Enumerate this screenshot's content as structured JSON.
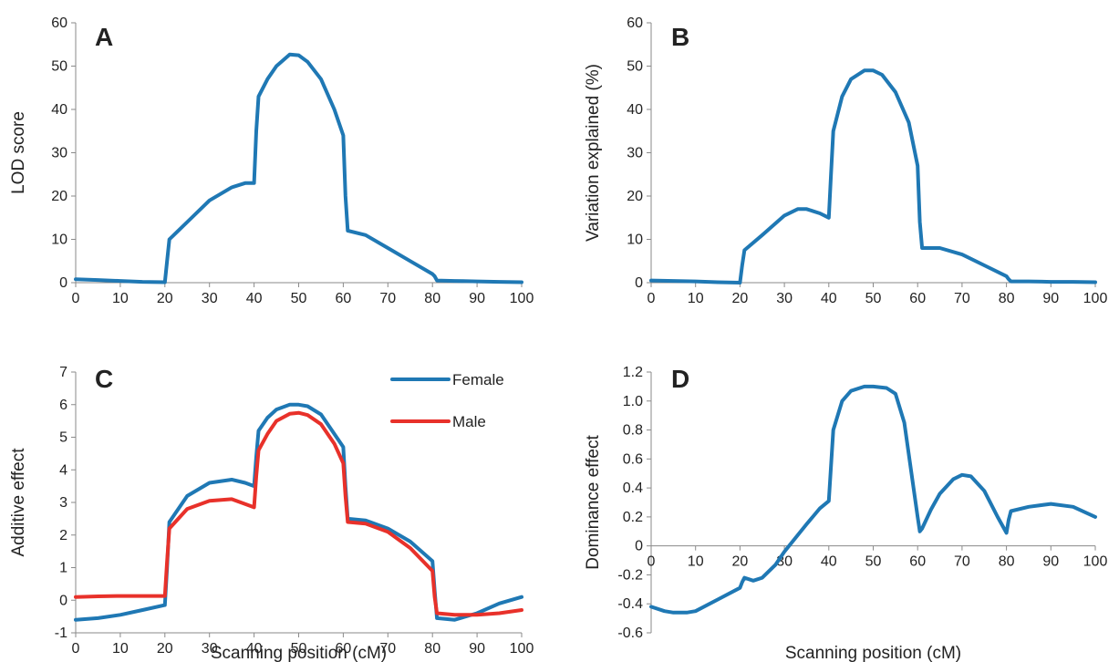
{
  "chart_data": [
    {
      "type": "line",
      "panel_label": "A",
      "xlabel": "",
      "ylabel": "LOD score",
      "xlim": [
        0,
        100
      ],
      "ylim": [
        0,
        60
      ],
      "xticks": [
        0,
        10,
        20,
        30,
        40,
        50,
        60,
        70,
        80,
        90,
        100
      ],
      "yticks": [
        0,
        10,
        20,
        30,
        40,
        50,
        60
      ],
      "grid": false,
      "series": [
        {
          "color": "#1f78b4",
          "x": [
            0,
            5,
            10,
            15,
            20,
            20.5,
            21,
            25,
            30,
            35,
            38,
            40,
            40.5,
            41,
            43,
            45,
            48,
            50,
            52,
            55,
            58,
            60,
            60.5,
            61,
            65,
            70,
            75,
            80,
            80.5,
            81,
            85,
            90,
            95,
            100
          ],
          "y": [
            0.8,
            0.6,
            0.4,
            0.2,
            0.1,
            5,
            10,
            14,
            19,
            22,
            23,
            23,
            35,
            43,
            47,
            50,
            52.7,
            52.5,
            51,
            47,
            40,
            34,
            20,
            12,
            11,
            8,
            5,
            2,
            1.5,
            0.5,
            0.4,
            0.3,
            0.2,
            0.1
          ]
        }
      ]
    },
    {
      "type": "line",
      "panel_label": "B",
      "xlabel": "",
      "ylabel": "Variation explained (%)",
      "xlim": [
        0,
        100
      ],
      "ylim": [
        0,
        60
      ],
      "xticks": [
        0,
        10,
        20,
        30,
        40,
        50,
        60,
        70,
        80,
        90,
        100
      ],
      "yticks": [
        0,
        10,
        20,
        30,
        40,
        50,
        60
      ],
      "grid": false,
      "series": [
        {
          "color": "#1f78b4",
          "x": [
            0,
            5,
            10,
            15,
            20,
            20.5,
            21,
            25,
            30,
            33,
            35,
            38,
            40,
            40.5,
            41,
            43,
            45,
            48,
            50,
            52,
            55,
            58,
            60,
            60.5,
            61,
            65,
            70,
            75,
            80,
            80.5,
            81,
            85,
            90,
            95,
            100
          ],
          "y": [
            0.5,
            0.4,
            0.3,
            0.1,
            0,
            4,
            7.5,
            11,
            15.5,
            17,
            17,
            16,
            15,
            25,
            35,
            43,
            47,
            49,
            49,
            48,
            44,
            37,
            27,
            14,
            8,
            8,
            6.5,
            4,
            1.5,
            0.8,
            0.3,
            0.3,
            0.2,
            0.2,
            0.1
          ]
        }
      ]
    },
    {
      "type": "line",
      "panel_label": "C",
      "xlabel": "Scanning position (cM)",
      "ylabel": "Additive effect",
      "xlim": [
        0,
        100
      ],
      "ylim": [
        -1,
        7
      ],
      "xticks": [
        0,
        10,
        20,
        30,
        40,
        50,
        60,
        70,
        80,
        90,
        100
      ],
      "yticks": [
        -1,
        0,
        1,
        2,
        3,
        4,
        5,
        6,
        7
      ],
      "grid": false,
      "legend": "top-right",
      "series": [
        {
          "name": "Female",
          "color": "#1f78b4",
          "x": [
            0,
            5,
            10,
            15,
            20,
            20.5,
            21,
            25,
            30,
            35,
            38,
            40,
            40.5,
            41,
            43,
            45,
            48,
            50,
            52,
            55,
            58,
            60,
            60.5,
            61,
            65,
            70,
            75,
            80,
            80.5,
            81,
            85,
            90,
            95,
            100
          ],
          "y": [
            -0.6,
            -0.55,
            -0.45,
            -0.3,
            -0.15,
            1,
            2.4,
            3.2,
            3.6,
            3.7,
            3.6,
            3.5,
            4.4,
            5.2,
            5.6,
            5.85,
            6.0,
            6.0,
            5.95,
            5.7,
            5.1,
            4.7,
            3.5,
            2.5,
            2.45,
            2.2,
            1.8,
            1.2,
            0.3,
            -0.55,
            -0.6,
            -0.4,
            -0.1,
            0.1
          ]
        },
        {
          "name": "Male",
          "color": "#e8312a",
          "x": [
            0,
            5,
            10,
            15,
            20,
            20.5,
            21,
            25,
            30,
            35,
            38,
            40,
            40.5,
            41,
            43,
            45,
            48,
            50,
            52,
            55,
            58,
            60,
            60.5,
            61,
            65,
            70,
            75,
            80,
            80.5,
            81,
            85,
            90,
            95,
            100
          ],
          "y": [
            0.1,
            0.12,
            0.13,
            0.13,
            0.13,
            1.2,
            2.2,
            2.8,
            3.05,
            3.1,
            2.95,
            2.85,
            3.8,
            4.6,
            5.1,
            5.5,
            5.72,
            5.75,
            5.68,
            5.4,
            4.8,
            4.2,
            3.2,
            2.4,
            2.35,
            2.1,
            1.6,
            0.9,
            0.1,
            -0.4,
            -0.45,
            -0.45,
            -0.4,
            -0.3
          ]
        }
      ]
    },
    {
      "type": "line",
      "panel_label": "D",
      "xlabel": "Scanning position (cM)",
      "ylabel": "Dominance effect",
      "xlim": [
        0,
        100
      ],
      "ylim": [
        -0.6,
        1.2
      ],
      "xticks": [
        0,
        10,
        20,
        30,
        40,
        50,
        60,
        70,
        80,
        90,
        100
      ],
      "yticks": [
        -0.6,
        -0.4,
        -0.2,
        0,
        0.2,
        0.4,
        0.6,
        0.8,
        1.0,
        1.2
      ],
      "ytick_labels": [
        "-0.6",
        "-0.4",
        "-0.2",
        "0",
        "0.2",
        "0.4",
        "0.6",
        "0.8",
        "1.0",
        "1.2"
      ],
      "grid": false,
      "series": [
        {
          "color": "#1f78b4",
          "x": [
            0,
            3,
            5,
            8,
            10,
            15,
            20,
            20.5,
            21,
            23,
            25,
            28,
            30,
            35,
            38,
            40,
            40.5,
            41,
            43,
            45,
            48,
            50,
            53,
            55,
            57,
            60,
            60.5,
            61,
            63,
            65,
            68,
            70,
            72,
            75,
            78,
            80,
            80.5,
            81,
            85,
            90,
            95,
            100
          ],
          "y": [
            -0.42,
            -0.45,
            -0.46,
            -0.46,
            -0.45,
            -0.37,
            -0.29,
            -0.25,
            -0.22,
            -0.24,
            -0.22,
            -0.13,
            -0.04,
            0.15,
            0.26,
            0.31,
            0.55,
            0.8,
            1.0,
            1.07,
            1.1,
            1.1,
            1.09,
            1.05,
            0.85,
            0.2,
            0.1,
            0.12,
            0.25,
            0.36,
            0.46,
            0.49,
            0.48,
            0.38,
            0.2,
            0.09,
            0.18,
            0.24,
            0.27,
            0.29,
            0.27,
            0.2
          ]
        }
      ]
    }
  ]
}
